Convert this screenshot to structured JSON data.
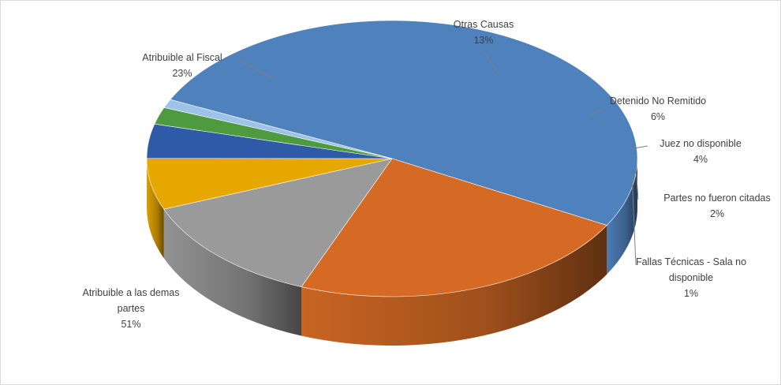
{
  "chart_data": {
    "type": "pie",
    "style": "3d",
    "title": "",
    "slices": [
      {
        "key": "demas",
        "label_lines": [
          "Atribuible a las demas",
          "partes"
        ],
        "pct_label": "51%",
        "value": 51,
        "color": "#4f81bd",
        "side": "#2b4a6e"
      },
      {
        "key": "fiscal",
        "label_lines": [
          "Atribuible  al Fiscal"
        ],
        "pct_label": "23%",
        "value": 23,
        "color": "#d46a24",
        "side": "#8a4314"
      },
      {
        "key": "otras",
        "label_lines": [
          "Otras Causas"
        ],
        "pct_label": "13%",
        "value": 13,
        "color": "#9a9a9a",
        "side": "#606060"
      },
      {
        "key": "detenido",
        "label_lines": [
          "Detenido No Remitido"
        ],
        "pct_label": "6%",
        "value": 6,
        "color": "#e6a700",
        "side": "#8e6700"
      },
      {
        "key": "juez",
        "label_lines": [
          "Juez no disponible"
        ],
        "pct_label": "4%",
        "value": 4,
        "color": "#2e5aa8",
        "side": "#1b3566"
      },
      {
        "key": "partes",
        "label_lines": [
          "Partes no fueron citadas"
        ],
        "pct_label": "2%",
        "value": 2,
        "color": "#4e9a3e",
        "side": "#2d5c24"
      },
      {
        "key": "fallas",
        "label_lines": [
          "Fallas Técnicas - Sala no",
          "disponible"
        ],
        "pct_label": "1%",
        "value": 1,
        "color": "#9dc3e6",
        "side": "#5e7f9c"
      }
    ]
  }
}
